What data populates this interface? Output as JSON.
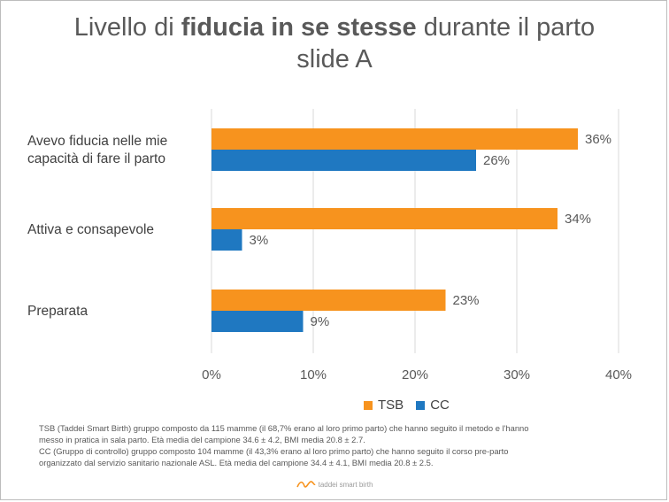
{
  "title": {
    "prefix": "Livello di ",
    "bold": "fiducia in se stesse",
    "suffix": " durante il parto",
    "line2": "slide A"
  },
  "colors": {
    "TSB": "#F7931E",
    "CC": "#1F78C1",
    "grid": "#d9d9d9",
    "text": "#595959"
  },
  "chart_data": {
    "type": "bar",
    "orientation": "horizontal",
    "categories": [
      [
        "Avevo fiducia nelle mie",
        "capacità di fare il parto"
      ],
      [
        "Attiva e consapevole"
      ],
      [
        "Preparata"
      ]
    ],
    "series": [
      {
        "name": "TSB",
        "values": [
          36,
          34,
          23
        ],
        "labels": [
          "36%",
          "34%",
          "23%"
        ]
      },
      {
        "name": "CC",
        "values": [
          26,
          3,
          9
        ],
        "labels": [
          "26%",
          "3%",
          "9%"
        ]
      }
    ],
    "xlim": [
      0,
      40
    ],
    "xticks": [
      "0%",
      "10%",
      "20%",
      "30%",
      "40%"
    ],
    "xtick_values": [
      0,
      10,
      20,
      30,
      40
    ],
    "grid": true,
    "legend": "bottom"
  },
  "footnote": [
    "TSB (Taddei Smart Birth) gruppo composto da 115 mamme (il 68,7% erano al loro primo parto) che hanno seguito il metodo e l'hanno",
    "messo in pratica in sala parto. Età media del campione 34.6 ± 4.2, BMI media 20.8 ± 2.7.",
    "CC (Gruppo di controllo) gruppo composto 104 mamme (il 43,3% erano al loro primo parto) che hanno seguito il corso pre-parto",
    "organizzato dal servizio sanitario nazionale ASL. Età media del campione 34.4 ± 4.1, BMI media 20.8 ± 2.5."
  ],
  "logo": {
    "text": "taddei smart birth"
  }
}
